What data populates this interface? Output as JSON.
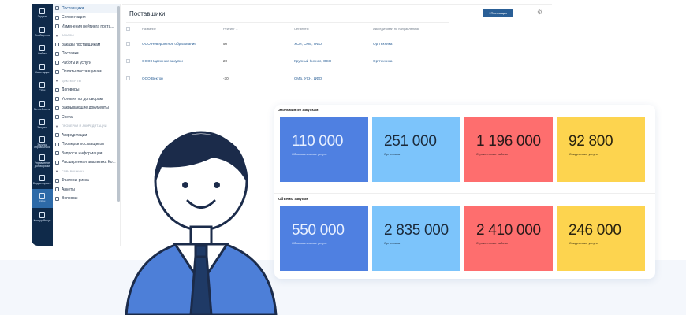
{
  "nav": [
    "Задачи",
    "Сообщения",
    "Файлы",
    "Календарь",
    "CRM",
    "Потребности",
    "Закупки",
    "Закупки справочники",
    "Управление договорами",
    "Бюджетиров...",
    "SRM",
    "Контур.Фокус"
  ],
  "nav_active": 10,
  "menu": [
    {
      "type": "item",
      "label": "Поставщики",
      "active": true
    },
    {
      "type": "item",
      "label": "Сегментация"
    },
    {
      "type": "item",
      "label": "Изменения рейтинга поста..."
    },
    {
      "type": "section",
      "label": "ЗАКАЗЫ"
    },
    {
      "type": "item",
      "label": "Заказы поставщикам"
    },
    {
      "type": "item",
      "label": "Поставки"
    },
    {
      "type": "item",
      "label": "Работы и услуги"
    },
    {
      "type": "item",
      "label": "Оплаты поставщикам"
    },
    {
      "type": "section",
      "label": "ДОКУМЕНТЫ"
    },
    {
      "type": "item",
      "label": "Договоры"
    },
    {
      "type": "item",
      "label": "Условия по договорам"
    },
    {
      "type": "item",
      "label": "Закрывающие документы"
    },
    {
      "type": "item",
      "label": "Счета"
    },
    {
      "type": "section",
      "label": "ПРОВЕРКИ И АККРЕДИТАЦИИ"
    },
    {
      "type": "item",
      "label": "Аккредитации"
    },
    {
      "type": "item",
      "label": "Проверки поставщиков"
    },
    {
      "type": "item",
      "label": "Запросы информации"
    },
    {
      "type": "item",
      "label": "Расширенная аналитика Ко..."
    },
    {
      "type": "section",
      "label": "СПРАВОЧНИКИ"
    },
    {
      "type": "item",
      "label": "Факторы риска"
    },
    {
      "type": "item",
      "label": "Анкеты"
    },
    {
      "type": "item",
      "label": "Вопросы"
    }
  ],
  "page": {
    "title": "Поставщики",
    "add_button": "+ Поставщик",
    "more": "⋮",
    "settings": "⚙"
  },
  "table": {
    "headers": [
      "Название",
      "Рейтинг ⌄",
      "Сегменты",
      "Аккредитован по направлениям"
    ],
    "rows": [
      [
        "ООО Невероятное образование",
        "50",
        "УСН, СМБ, ПФО",
        "Оргтехника"
      ],
      [
        "ООО Надежные закупки",
        "20",
        "Крупный бизнес, ОСН",
        "Оргтехника"
      ],
      [
        "ООО Вектор",
        "-30",
        "СМБ, УСН, ЦФО",
        ""
      ]
    ]
  },
  "dashboard": {
    "sections": [
      {
        "title": "Экономия по закупкам",
        "cards": [
          {
            "value": "110 000",
            "label": "Образовательные услуги"
          },
          {
            "value": "251 000",
            "label": "Оргтехника"
          },
          {
            "value": "1 196 000",
            "label": "Строительные работы"
          },
          {
            "value": "92 800",
            "label": "Юридические услуги"
          }
        ]
      },
      {
        "title": "Объемы закупок",
        "cards": [
          {
            "value": "550 000",
            "label": "Образовательные услуги"
          },
          {
            "value": "2 835 000",
            "label": "Оргтехника"
          },
          {
            "value": "2 410 000",
            "label": "Строительные работы"
          },
          {
            "value": "246 000",
            "label": "Юридические услуги"
          }
        ]
      }
    ],
    "colors": [
      "#4f80e1",
      "#7cc4fb",
      "#fe6e6e",
      "#fdd44f"
    ],
    "text_colors": [
      "#e8f0ff",
      "#1b2a3a",
      "#2a1a1a",
      "#2a2410"
    ]
  }
}
